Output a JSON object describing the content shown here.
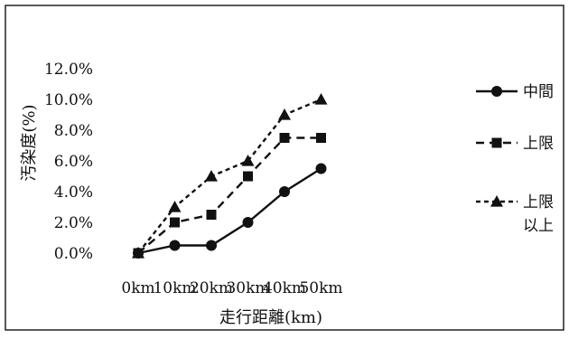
{
  "chart_data": {
    "type": "line",
    "title": "",
    "xlabel": "走行距離(km)",
    "ylabel": "汚染度(%)",
    "categories": [
      "0km",
      "10km",
      "20km",
      "30km",
      "40km",
      "50km"
    ],
    "y_ticks": [
      "12.0%",
      "10.0%",
      "8.0%",
      "6.0%",
      "4.0%",
      "2.0%",
      "0.0%"
    ],
    "ylim": [
      0,
      12
    ],
    "grid": false,
    "legend_position": "right",
    "series": [
      {
        "name": "中間",
        "marker": "circle",
        "dash": "solid",
        "values": [
          0,
          0.5,
          0.5,
          2.0,
          4.0,
          5.5
        ]
      },
      {
        "name": "上限",
        "marker": "square",
        "dash": "dashed",
        "values": [
          0,
          2.0,
          2.5,
          5.0,
          7.5,
          7.5
        ]
      },
      {
        "name": "上限\n以上",
        "marker": "triangle",
        "dash": "dotted",
        "values": [
          0,
          3.0,
          5.0,
          6.0,
          9.0,
          10.0
        ]
      }
    ],
    "colors": {
      "line": "#111111",
      "frame": "#222222"
    }
  }
}
